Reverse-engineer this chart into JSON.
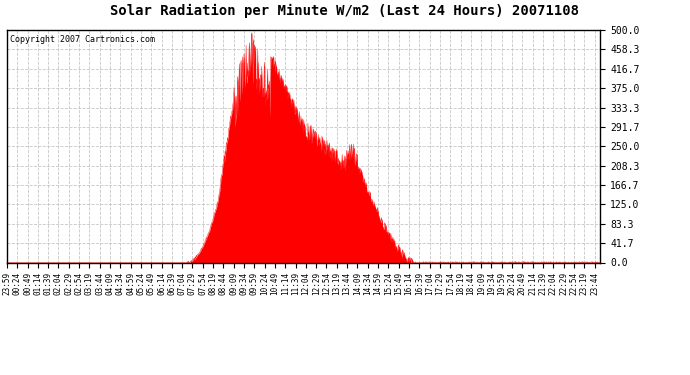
{
  "title": "Solar Radiation per Minute W/m2 (Last 24 Hours) 20071108",
  "copyright_text": "Copyright 2007 Cartronics.com",
  "fill_color": "#FF0000",
  "line_color": "#FF0000",
  "background_color": "#FFFFFF",
  "grid_color": "#C0C0C0",
  "dashed_line_color": "#FF0000",
  "ylim": [
    0.0,
    500.0
  ],
  "yticks": [
    0.0,
    41.7,
    83.3,
    125.0,
    166.7,
    208.3,
    250.0,
    291.7,
    333.3,
    375.0,
    416.7,
    458.3,
    500.0
  ],
  "num_minutes": 1440,
  "x_tick_start_hour": 23,
  "x_tick_start_min": 59,
  "x_tick_interval": 25
}
